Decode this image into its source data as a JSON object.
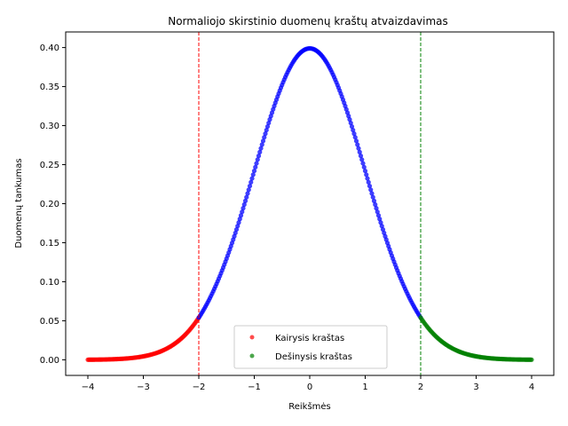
{
  "chart_data": {
    "type": "scatter",
    "title": "Normaliojo skirstinio duomenų kraštų atvaizdavimas",
    "xlabel": "Reikšmės",
    "ylabel": "Duomenų tankumas",
    "xlim": [
      -4.4,
      4.4
    ],
    "ylim": [
      -0.02,
      0.42
    ],
    "x_ticks": [
      -4,
      -3,
      -2,
      -1,
      0,
      1,
      2,
      3,
      4
    ],
    "x_tick_labels": [
      "−4",
      "−3",
      "−2",
      "−1",
      "0",
      "1",
      "2",
      "3",
      "4"
    ],
    "y_ticks": [
      0.0,
      0.05,
      0.1,
      0.15,
      0.2,
      0.25,
      0.3,
      0.35,
      0.4
    ],
    "y_tick_labels": [
      "0.00",
      "0.05",
      "0.10",
      "0.15",
      "0.20",
      "0.25",
      "0.30",
      "0.35",
      "0.40"
    ],
    "grid": false,
    "legend_position": "bottom-center",
    "curve": {
      "function": "normal-pdf",
      "mean": 0,
      "std": 1,
      "x_range": [
        -4,
        4
      ]
    },
    "series": [
      {
        "name": "Kairysis kraštas",
        "color": "#ff0000",
        "x_range": [
          -4,
          -2
        ]
      },
      {
        "name": "",
        "color": "#0000ff",
        "x_range": [
          -2,
          2
        ]
      },
      {
        "name": "Dešinysis kraštas",
        "color": "#008000",
        "x_range": [
          2,
          4
        ]
      }
    ],
    "thresholds": [
      {
        "x": -2,
        "color": "#ff0000",
        "style": "dashed"
      },
      {
        "x": 2,
        "color": "#008000",
        "style": "dashed"
      }
    ]
  }
}
